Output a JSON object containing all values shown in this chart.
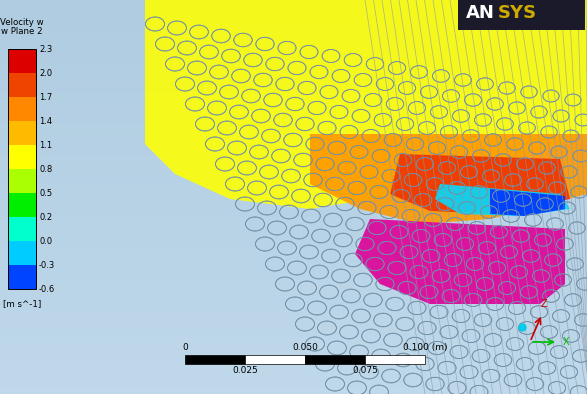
{
  "bg_color": "#b8cfe4",
  "bg_color2": "#c8dcea",
  "colorbar_label_top": "Velocity w",
  "colorbar_label_bot": "w Plane 2",
  "colorbar_unit": "[m s^-1]",
  "colorbar_values": [
    2.3,
    2.0,
    1.7,
    1.4,
    1.1,
    0.8,
    0.5,
    0.2,
    0.0,
    -0.3,
    -0.6
  ],
  "colorbar_colors": [
    "#dd0000",
    "#ee4400",
    "#ff8800",
    "#ffbb00",
    "#ffff00",
    "#aaff00",
    "#00ee00",
    "#00ffcc",
    "#00ccff",
    "#0044ff",
    "#000088"
  ],
  "yellow_color": "#ffff00",
  "orange_color": "#ff9900",
  "red_color": "#ee3300",
  "cyan_color": "#00ddff",
  "blue_color": "#0033ff",
  "magenta_color": "#dd0099",
  "circle_edge": "#7090a8",
  "fin_color": "#8899aa",
  "scale_labels_top": [
    "0",
    "0.050",
    "0.100 (m)"
  ],
  "scale_labels_bot": [
    "0.025",
    "0.075"
  ],
  "ansys_white": "white",
  "ansys_yellow": "#ccaa00",
  "coord_x_color": "#00bb00",
  "coord_z_color": "#cc0000",
  "coord_y_color": "#0000cc",
  "coord_dot_color": "#00ccee"
}
